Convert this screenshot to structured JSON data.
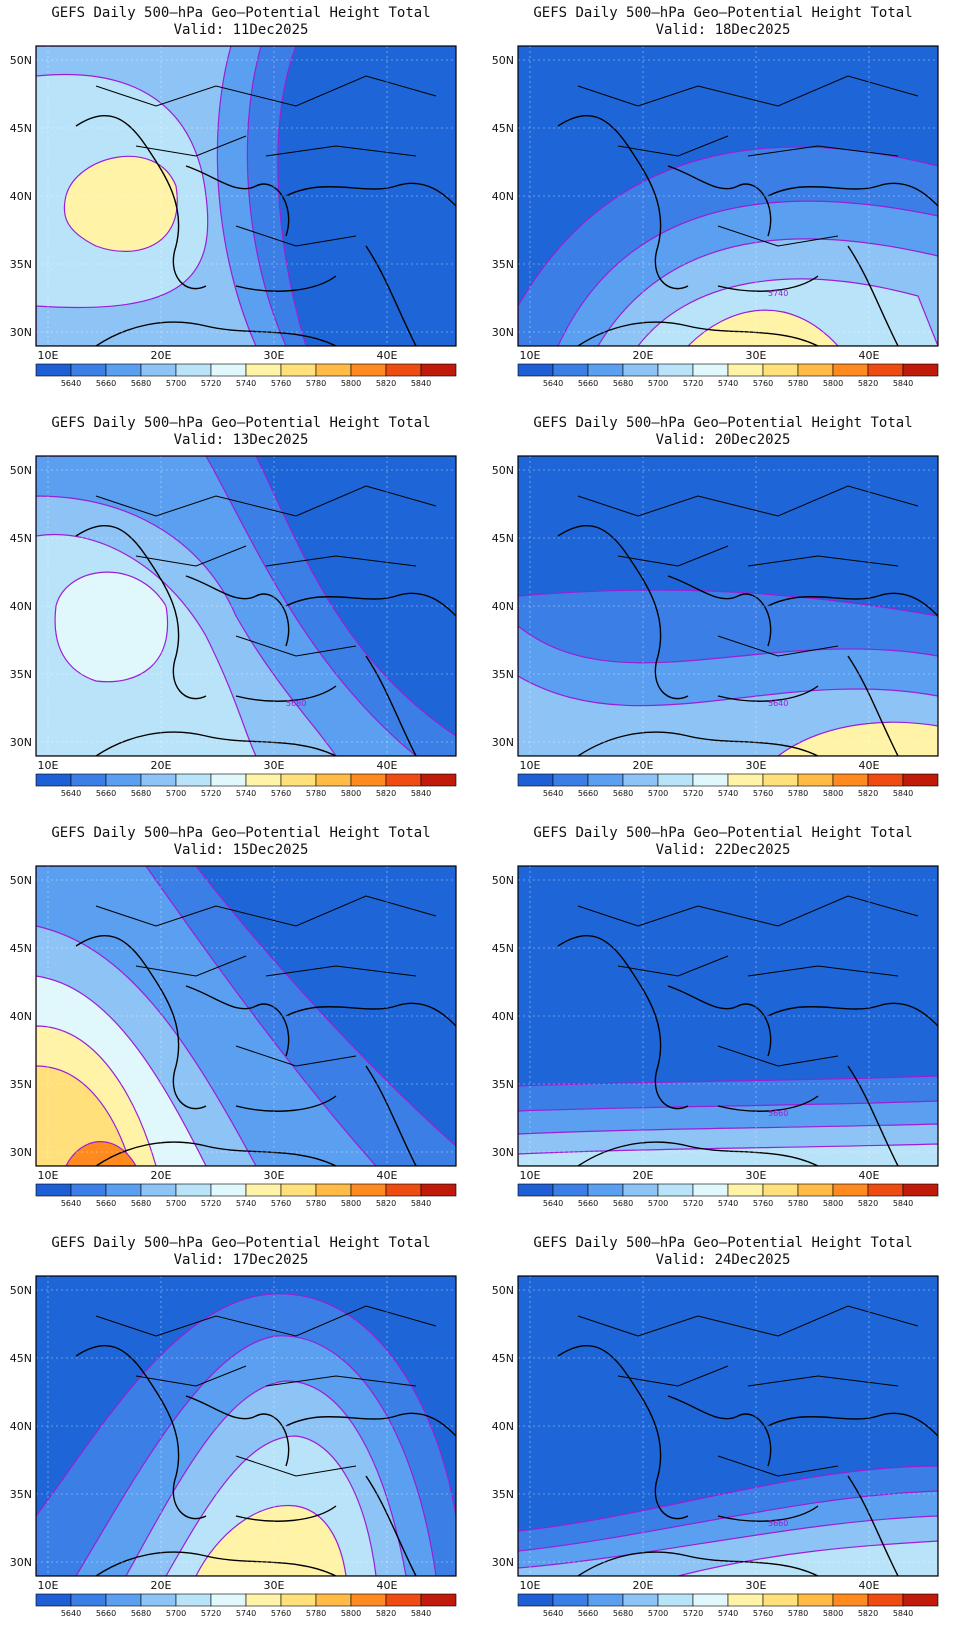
{
  "title_line": "GEFS Daily 500–hPa Geo–Potential Height Total",
  "valid_prefix": "Valid:",
  "panels": [
    {
      "date": "11Dec2025",
      "hasLabel": false,
      "label": ""
    },
    {
      "date": "18Dec2025",
      "hasLabel": true,
      "label": "5740"
    },
    {
      "date": "13Dec2025",
      "hasLabel": true,
      "label": "5680"
    },
    {
      "date": "20Dec2025",
      "hasLabel": true,
      "label": "5640"
    },
    {
      "date": "15Dec2025",
      "hasLabel": false,
      "label": ""
    },
    {
      "date": "22Dec2025",
      "hasLabel": true,
      "label": "5660"
    },
    {
      "date": "17Dec2025",
      "hasLabel": false,
      "label": ""
    },
    {
      "date": "24Dec2025",
      "hasLabel": true,
      "label": "5660"
    }
  ],
  "lat_ticks": [
    "50N",
    "45N",
    "40N",
    "35N",
    "30N"
  ],
  "lon_ticks": [
    "10E",
    "20E",
    "30E",
    "40E"
  ],
  "colorbar": {
    "labels": [
      "5640",
      "5660",
      "5680",
      "5700",
      "5720",
      "5740",
      "5760",
      "5780",
      "5800",
      "5820",
      "5840"
    ],
    "colors": [
      "#1f5fd6",
      "#3b7fe6",
      "#5b9ff0",
      "#8ec3f5",
      "#b9e3f8",
      "#e0f7fb",
      "#fff3a8",
      "#ffe07a",
      "#ffbb45",
      "#ff8a1f",
      "#ee4c12",
      "#c01a0a"
    ]
  },
  "style": {
    "base_color": "#1e66d8",
    "contour_color": "#9a1fd6",
    "coast_color": "#000000"
  }
}
